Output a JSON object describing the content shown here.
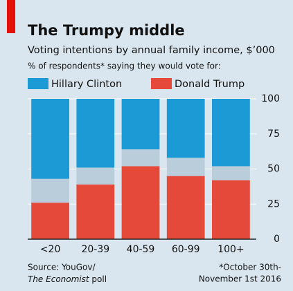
{
  "chart_data": {
    "type": "stacked-bar",
    "title": "The Trumpy middle",
    "subtitle": "Voting intentions by annual family income, $’000",
    "note": "% of respondents* saying they would vote for:",
    "categories": [
      "<20",
      "20-39",
      "40-59",
      "60-99",
      "100+"
    ],
    "series": [
      {
        "name": "Donald Trump",
        "color": "#e5493a",
        "values": [
          26,
          39,
          52,
          45,
          42
        ]
      },
      {
        "color": "#b9cdda",
        "values": [
          17,
          12,
          12,
          13,
          10
        ]
      },
      {
        "name": "Hillary Clinton",
        "color": "#1b9ad6",
        "values": [
          57,
          49,
          36,
          42,
          48
        ]
      }
    ],
    "ylim": [
      0,
      100
    ],
    "yticks": [
      0,
      25,
      50,
      75,
      100
    ],
    "grid": true,
    "source": {
      "line1": "Source: YouGov/",
      "italic": "The Economist",
      "rest": " poll"
    },
    "footnote": [
      "*October 30th-",
      "November 1st 2016"
    ]
  }
}
